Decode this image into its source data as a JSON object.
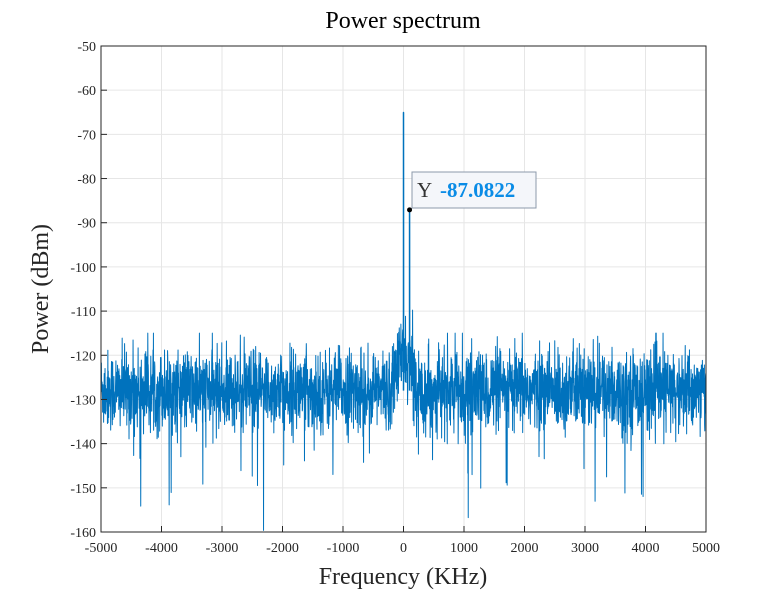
{
  "chart_data": {
    "type": "line",
    "title": "Power spectrum",
    "xlabel": "Frequency (KHz)",
    "ylabel": "Power (dBm)",
    "xlim": [
      -5000,
      5000
    ],
    "ylim": [
      -160,
      -50
    ],
    "xticks": [
      -5000,
      -4000,
      -3000,
      -2000,
      -1000,
      0,
      1000,
      2000,
      3000,
      4000,
      5000
    ],
    "yticks": [
      -50,
      -60,
      -70,
      -80,
      -90,
      -100,
      -110,
      -120,
      -130,
      -140,
      -150,
      -160
    ],
    "grid": true,
    "series": [
      {
        "name": "Power spectrum",
        "color": "#0072bd",
        "description": "Noise floor band mostly between -140 and -117 dBm with deeper dips to about -160; raised region near 0 KHz; main tone peak near 0 KHz",
        "noise_floor_center": -128,
        "noise_band_top": -117,
        "noise_band_bottom": -140,
        "peaks": [
          {
            "x": 0,
            "y": -65
          },
          {
            "x": 100,
            "y": -87.0822
          }
        ]
      }
    ],
    "datatip": {
      "label": "Y",
      "value": "-87.0822",
      "x": 100,
      "y": -87.0822,
      "value_color": "#0a8ce6"
    }
  }
}
